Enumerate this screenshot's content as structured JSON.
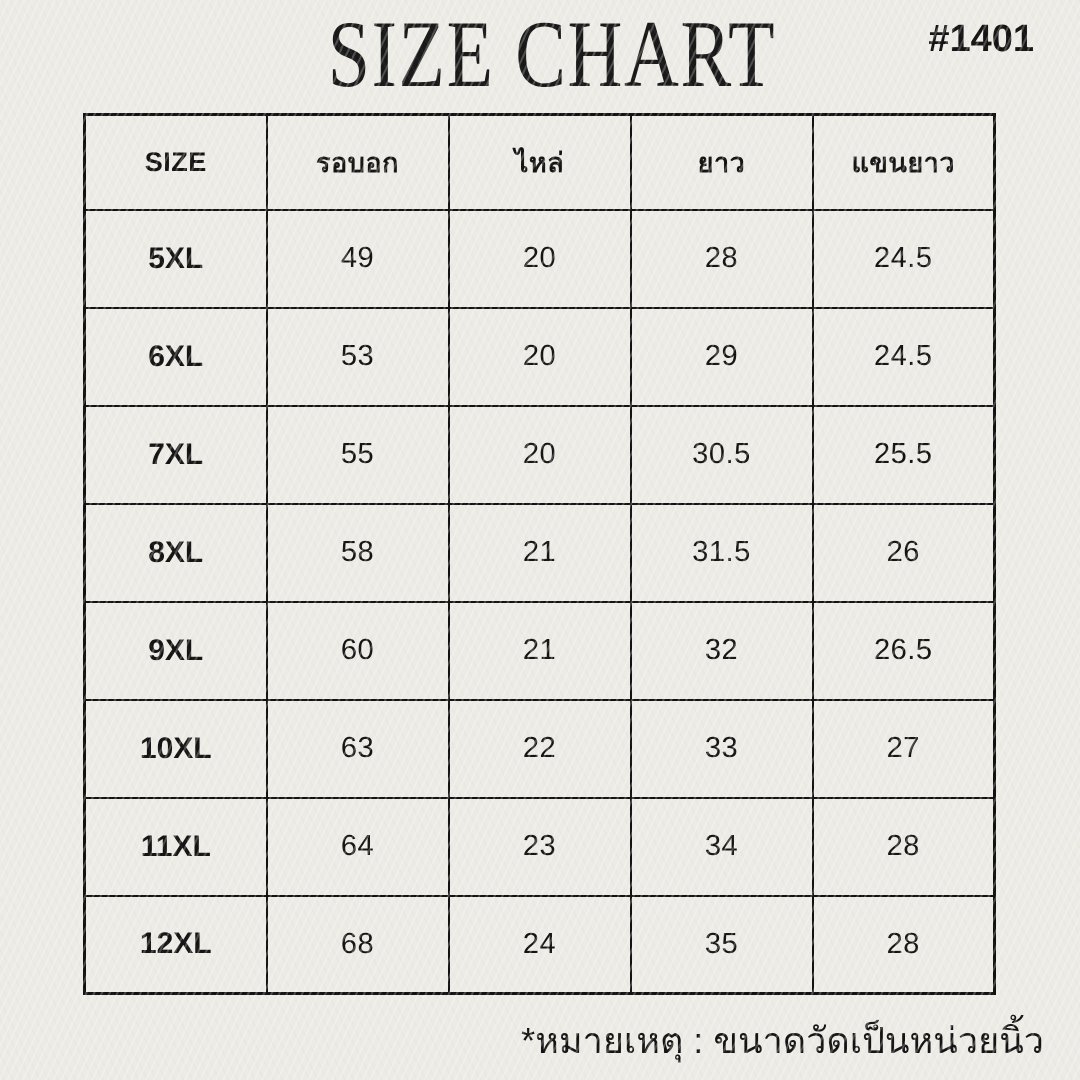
{
  "header": {
    "title": "SIZE CHART",
    "product_code": "#1401"
  },
  "footer": {
    "note": "*หมายเหตุ : ขนาดวัดเป็นหน่วยนิ้ว"
  },
  "colors": {
    "background": "#ECEBE5",
    "text": "#141414",
    "border": "#121212"
  },
  "chart_data": {
    "type": "table",
    "title": "SIZE CHART",
    "columns": [
      "SIZE",
      "รอบอก",
      "ไหล่",
      "ยาว",
      "แขนยาว"
    ],
    "rows": [
      [
        "5XL",
        49,
        20,
        28,
        24.5
      ],
      [
        "6XL",
        53,
        20,
        29,
        24.5
      ],
      [
        "7XL",
        55,
        20,
        30.5,
        25.5
      ],
      [
        "8XL",
        58,
        21,
        31.5,
        26
      ],
      [
        "9XL",
        60,
        21,
        32,
        26.5
      ],
      [
        "10XL",
        63,
        22,
        33,
        27
      ],
      [
        "11XL",
        64,
        23,
        34,
        28
      ],
      [
        "12XL",
        68,
        24,
        35,
        28
      ]
    ],
    "note": "*หมายเหตุ : ขนาดวัดเป็นหน่วยนิ้ว",
    "layout_hints": {
      "header_row": true,
      "grid": true,
      "units": "inches"
    }
  }
}
